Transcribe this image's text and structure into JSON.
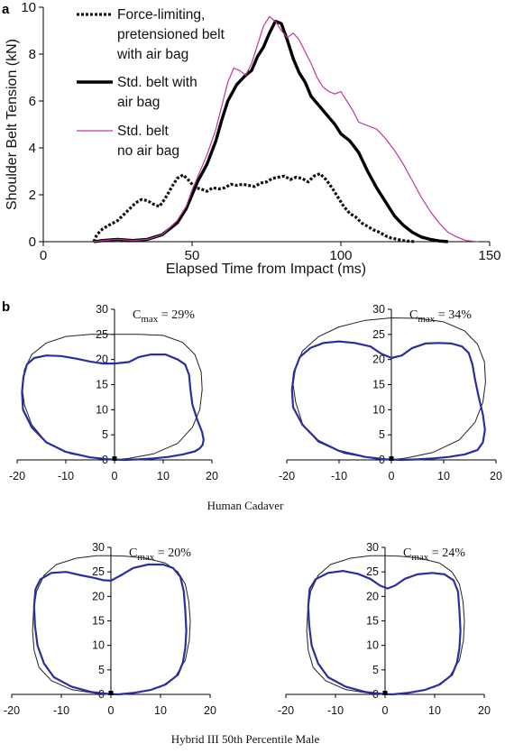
{
  "panel_a_label": "a",
  "panel_b_label": "b",
  "chart_data": [
    {
      "type": "line",
      "xlabel": "Elapsed Time from Impact (ms)",
      "ylabel": "Shoulder Belt Tension (kN)",
      "xlim": [
        0,
        150
      ],
      "ylim": [
        0,
        10
      ],
      "xticks": [
        0,
        50,
        100,
        150
      ],
      "yticks": [
        0,
        2,
        4,
        6,
        8,
        10
      ],
      "legend_position": "top-left",
      "series": [
        {
          "name": "Force-limiting, pretensioned belt with air bag",
          "legend_lines": [
            "Force-limiting,",
            "pretensioned belt",
            "with air bag"
          ],
          "color": "#111111",
          "style": "dotted",
          "x": [
            17,
            18,
            20,
            22,
            25,
            27,
            29,
            31,
            33,
            35,
            37,
            39,
            41,
            43,
            45,
            47,
            49,
            51,
            53,
            55,
            57,
            59,
            61,
            63,
            65,
            67,
            69,
            71,
            73,
            75,
            77,
            79,
            81,
            83,
            85,
            87,
            89,
            91,
            93,
            95,
            97,
            99,
            101,
            103,
            105,
            107,
            109,
            111,
            113,
            115,
            117,
            119,
            121,
            123,
            125
          ],
          "y": [
            0.0,
            0.3,
            0.55,
            0.7,
            0.9,
            1.15,
            1.4,
            1.65,
            1.8,
            1.75,
            1.6,
            1.5,
            1.85,
            2.3,
            2.7,
            2.85,
            2.6,
            2.3,
            2.25,
            2.15,
            2.3,
            2.25,
            2.3,
            2.45,
            2.4,
            2.45,
            2.4,
            2.35,
            2.5,
            2.55,
            2.7,
            2.75,
            2.8,
            2.65,
            2.75,
            2.7,
            2.55,
            2.8,
            2.9,
            2.65,
            2.3,
            1.9,
            1.5,
            1.2,
            1.05,
            0.8,
            0.65,
            0.5,
            0.4,
            0.25,
            0.15,
            0.1,
            0.05,
            0.02,
            0.0
          ]
        },
        {
          "name": "Std. belt with air bag",
          "legend_lines": [
            "Std. belt with",
            "air bag"
          ],
          "color": "#000000",
          "style": "solid-thick",
          "x": [
            17,
            20,
            25,
            30,
            35,
            40,
            45,
            48,
            50,
            52,
            55,
            58,
            60,
            62,
            65,
            68,
            70,
            72,
            74,
            76,
            78,
            80,
            82,
            84,
            86,
            88,
            90,
            92,
            94,
            96,
            98,
            100,
            103,
            106,
            109,
            112,
            115,
            118,
            121,
            124,
            127,
            130,
            133,
            136
          ],
          "y": [
            0,
            0.05,
            0.1,
            0.05,
            0.1,
            0.3,
            0.8,
            1.4,
            2.0,
            2.6,
            3.3,
            4.3,
            5.2,
            6.0,
            6.7,
            7.1,
            7.3,
            7.9,
            8.3,
            8.9,
            9.4,
            9.3,
            8.6,
            7.8,
            7.2,
            6.8,
            6.2,
            5.9,
            5.6,
            5.3,
            5.0,
            4.6,
            4.3,
            3.8,
            3.0,
            2.3,
            1.7,
            1.1,
            0.7,
            0.4,
            0.2,
            0.1,
            0.03,
            0.0
          ]
        },
        {
          "name": "Std. belt no air bag",
          "legend_lines": [
            "Std. belt",
            "no air bag"
          ],
          "color": "#c2369a",
          "style": "solid-thin",
          "x": [
            17,
            20,
            25,
            30,
            35,
            40,
            45,
            48,
            50,
            52,
            55,
            58,
            60,
            62,
            64,
            66,
            68,
            70,
            72,
            74,
            76,
            78,
            80,
            82,
            84,
            86,
            88,
            90,
            92,
            94,
            96,
            98,
            100,
            102,
            104,
            106,
            108,
            110,
            112,
            115,
            118,
            121,
            124,
            127,
            130,
            133,
            136,
            139,
            142,
            146
          ],
          "y": [
            0,
            0.05,
            0.1,
            0.05,
            0.1,
            0.3,
            0.9,
            1.5,
            2.2,
            2.8,
            3.7,
            4.8,
            5.8,
            6.8,
            7.4,
            7.3,
            7.1,
            7.6,
            8.4,
            9.2,
            9.6,
            9.4,
            9.0,
            8.7,
            8.9,
            8.6,
            8.1,
            7.6,
            7.0,
            6.6,
            6.4,
            6.3,
            6.4,
            6.0,
            5.6,
            5.1,
            5.0,
            4.9,
            4.8,
            4.4,
            3.9,
            3.3,
            2.6,
            1.9,
            1.3,
            0.8,
            0.4,
            0.2,
            0.05,
            0.0
          ]
        }
      ]
    },
    {
      "type": "line",
      "title_text": "C",
      "title_sub": "max",
      "title_value": " = 29%",
      "xlim": [
        -20,
        20
      ],
      "ylim": [
        0,
        30
      ],
      "xticks": [
        -20,
        -10,
        0,
        10,
        20
      ],
      "yticks": [
        0,
        5,
        10,
        15,
        20,
        25,
        30
      ],
      "caption": "Human Cadaver",
      "series": [
        {
          "role": "reference",
          "color": "#222222",
          "x": [
            -3,
            -9,
            -14,
            -17,
            -18.5,
            -19,
            -18.5,
            -17,
            -14,
            -10,
            -5,
            0,
            5,
            10,
            14,
            16.5,
            17.8,
            18,
            17.5,
            16,
            13,
            8,
            3,
            0,
            -3
          ],
          "y": [
            0.2,
            1.2,
            3.5,
            7,
            11,
            14.5,
            18,
            21,
            23.3,
            24.6,
            25,
            25,
            25,
            24.8,
            23.4,
            21,
            17.5,
            14,
            10,
            6.5,
            3.3,
            1.2,
            0.3,
            0,
            0.2
          ]
        },
        {
          "role": "deformed",
          "color": "#2b2f9e",
          "x": [
            -1,
            -5,
            -10,
            -14,
            -17,
            -18.8,
            -19,
            -18.7,
            -18,
            -16.5,
            -14,
            -11,
            -8,
            -5,
            -2.5,
            0,
            3,
            5,
            7.5,
            10.5,
            13,
            14.5,
            15.3,
            15.6,
            16,
            17,
            18,
            18.3,
            18.1,
            17.5,
            16.5,
            14,
            11,
            8,
            5,
            2,
            -1
          ],
          "y": [
            0.1,
            0.5,
            1.6,
            3.5,
            6.5,
            10,
            13.5,
            16.5,
            19,
            20.3,
            20.8,
            20.7,
            20.2,
            19.6,
            19.2,
            19.2,
            19.5,
            20.5,
            21,
            21,
            20,
            19,
            17,
            14,
            11,
            8,
            5.5,
            4,
            3,
            2.3,
            1.7,
            1.1,
            0.6,
            0.3,
            0.1,
            0,
            0.1
          ]
        }
      ]
    },
    {
      "type": "line",
      "title_text": "C",
      "title_sub": "max",
      "title_value": " = 34%",
      "xlim": [
        -20,
        20
      ],
      "ylim": [
        0,
        30
      ],
      "xticks": [
        -20,
        -10,
        0,
        10,
        20
      ],
      "yticks": [
        0,
        5,
        10,
        15,
        20,
        25,
        30
      ],
      "caption": "Human Cadaver",
      "series": [
        {
          "role": "reference",
          "color": "#222222",
          "x": [
            -3,
            -9,
            -14,
            -17,
            -18.3,
            -18.8,
            -18.3,
            -17,
            -14,
            -10,
            -5,
            0,
            5,
            10,
            14,
            16.5,
            17.8,
            18,
            17.5,
            16,
            13,
            8,
            3,
            0,
            -3
          ],
          "y": [
            0.2,
            1.3,
            3.6,
            7.2,
            11.5,
            15,
            18.5,
            21.7,
            24.5,
            26.5,
            27.8,
            28.3,
            28.2,
            27.5,
            25.7,
            23,
            19.5,
            15.5,
            11.5,
            7.5,
            4,
            1.5,
            0.4,
            0,
            0.2
          ]
        },
        {
          "role": "deformed",
          "color": "#2b2f9e",
          "x": [
            -1,
            -5,
            -10,
            -14,
            -17,
            -18.8,
            -19,
            -18.6,
            -17.5,
            -15.5,
            -13,
            -10,
            -7,
            -4,
            -2,
            0,
            2,
            4,
            6.5,
            9,
            11.5,
            13.5,
            14.8,
            15.5,
            16,
            16.7,
            17.5,
            17.9,
            17.5,
            16.5,
            14,
            11,
            8,
            5,
            2,
            -1
          ],
          "y": [
            0.1,
            0.6,
            1.8,
            3.8,
            7,
            10.5,
            14,
            17.5,
            20.5,
            22.3,
            23.3,
            23.6,
            23.3,
            22.6,
            21.2,
            20.3,
            20.8,
            22.3,
            23.2,
            23.3,
            23.2,
            22.6,
            21.3,
            19,
            16,
            12.5,
            9,
            6,
            3.5,
            2,
            1.1,
            0.6,
            0.3,
            0.1,
            0,
            0.1
          ]
        }
      ]
    },
    {
      "type": "line",
      "title_text": "C",
      "title_sub": "max",
      "title_value": " = 20%",
      "xlim": [
        -20,
        20
      ],
      "ylim": [
        0,
        30
      ],
      "xticks": [
        -20,
        -10,
        0,
        10,
        20
      ],
      "yticks": [
        0,
        5,
        10,
        15,
        20,
        25,
        30
      ],
      "caption": "Hybrid III 50th Percentile Male",
      "series": [
        {
          "role": "reference",
          "color": "#222222",
          "x": [
            -3,
            -8,
            -12,
            -14.5,
            -15.5,
            -15.8,
            -15.6,
            -15,
            -13.5,
            -11,
            -7,
            -3,
            0,
            3,
            7,
            11,
            13.5,
            15,
            15.7,
            16,
            15.8,
            15,
            13,
            10,
            6,
            2,
            0,
            -3
          ],
          "y": [
            0.2,
            1,
            2.8,
            5.5,
            9,
            13,
            17,
            21,
            24.3,
            26.5,
            27.8,
            28.3,
            28.3,
            28.2,
            27.8,
            26.8,
            25,
            22.5,
            19,
            15,
            11,
            7,
            3.6,
            1.5,
            0.5,
            0.1,
            0,
            0.2
          ]
        },
        {
          "role": "deformed",
          "color": "#2b2f9e",
          "x": [
            -0.5,
            -4,
            -8,
            -11.5,
            -13.5,
            -14.8,
            -15.3,
            -15.5,
            -15.2,
            -14.2,
            -12,
            -9,
            -6,
            -3.5,
            -1.5,
            0,
            2,
            4.5,
            7.5,
            10.5,
            12.5,
            14,
            14.7,
            15,
            15.2,
            15,
            14.5,
            13.5,
            11,
            8,
            4.5,
            1.5,
            -0.5
          ],
          "y": [
            0.1,
            0.5,
            1.6,
            3.5,
            6.3,
            10,
            14,
            18,
            21.5,
            23.5,
            24.8,
            25,
            24.3,
            23.8,
            23.3,
            23.2,
            24.3,
            25.8,
            26.5,
            26.5,
            25.8,
            24,
            21,
            17,
            13,
            9.5,
            6.5,
            4,
            2,
            0.9,
            0.3,
            0,
            0.1
          ]
        }
      ]
    },
    {
      "type": "line",
      "title_text": "C",
      "title_sub": "max",
      "title_value": " = 24%",
      "xlim": [
        -20,
        20
      ],
      "ylim": [
        0,
        30
      ],
      "xticks": [
        -20,
        -10,
        0,
        10,
        20
      ],
      "yticks": [
        0,
        5,
        10,
        15,
        20,
        25,
        30
      ],
      "caption": "Hybrid III 50th Percentile Male",
      "series": [
        {
          "role": "reference",
          "color": "#222222",
          "x": [
            -3,
            -8,
            -12,
            -14.5,
            -15.5,
            -15.8,
            -15.6,
            -15,
            -13.5,
            -11,
            -7,
            -3,
            0,
            3,
            7,
            11,
            13.5,
            15,
            15.7,
            16,
            15.8,
            15,
            13,
            10,
            6,
            2,
            0,
            -3
          ],
          "y": [
            0.2,
            1,
            2.8,
            5.5,
            9,
            13,
            17,
            21,
            24.3,
            26.5,
            27.8,
            28.3,
            28.3,
            28.2,
            27.8,
            26.8,
            25,
            22.5,
            19,
            15,
            11,
            7,
            3.6,
            1.5,
            0.5,
            0.1,
            0,
            0.2
          ]
        },
        {
          "role": "deformed",
          "color": "#2b2f9e",
          "x": [
            -0.5,
            -4,
            -8,
            -11.5,
            -13.5,
            -14.8,
            -15.3,
            -15.5,
            -15.2,
            -14,
            -11.5,
            -8.5,
            -5.5,
            -3,
            -1,
            0.5,
            2,
            4,
            6.5,
            9.5,
            12,
            13.8,
            14.7,
            15,
            15.2,
            15,
            14.5,
            13.5,
            11,
            8,
            4.5,
            1.5,
            -0.5
          ],
          "y": [
            0.1,
            0.5,
            1.6,
            3.5,
            6.3,
            10,
            14,
            18,
            21.5,
            23.5,
            24.8,
            25.2,
            24.6,
            23.6,
            22.2,
            21.6,
            22.2,
            23.6,
            24.5,
            24.8,
            24.5,
            23.3,
            21,
            17,
            13,
            9.5,
            6.5,
            4,
            2,
            0.9,
            0.3,
            0,
            0.1
          ]
        }
      ]
    }
  ]
}
